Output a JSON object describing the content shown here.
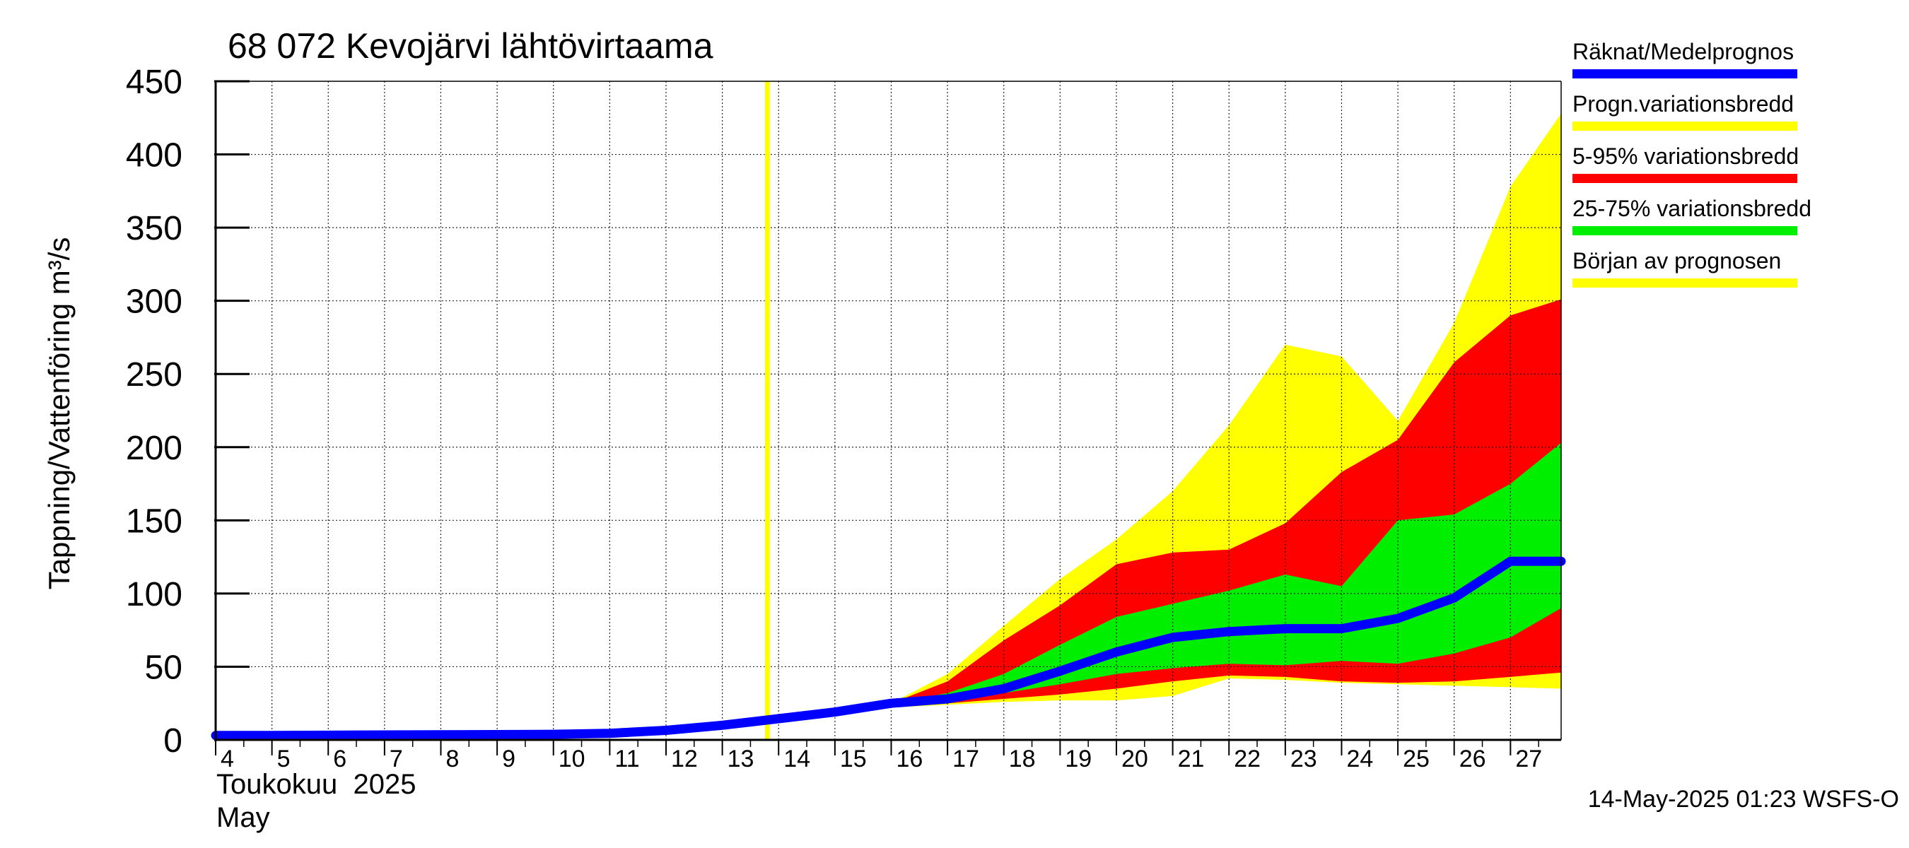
{
  "chart_data": {
    "type": "area",
    "title": "68 072 Kevojärvi lähtövirtaama",
    "ylabel": "Tappning/Vattenföring m³/s",
    "ylim": [
      0,
      450
    ],
    "yticks": [
      0,
      50,
      100,
      150,
      200,
      250,
      300,
      350,
      400,
      450
    ],
    "x_unit": "day of May 2025",
    "xlim": [
      4,
      27.9
    ],
    "xticks": [
      4,
      5,
      6,
      7,
      8,
      9,
      10,
      11,
      12,
      13,
      14,
      15,
      16,
      17,
      18,
      19,
      20,
      21,
      22,
      23,
      24,
      25,
      26,
      27
    ],
    "xlabel_month_fi": "Toukokuu  2025",
    "xlabel_month_sv": "May",
    "grid": true,
    "forecast_start": 13.8,
    "legend_position": "right",
    "legend": [
      {
        "label": "Räknat/Medelprognos",
        "color": "#0000ff"
      },
      {
        "label": "Progn.variationsbredd",
        "color": "#ffff00"
      },
      {
        "label": "5-95% variationsbredd",
        "color": "#ff0000"
      },
      {
        "label": "25-75% variationsbredd",
        "color": "#00ee00"
      },
      {
        "label": "Början av prognosen",
        "color": "#ffff00"
      }
    ],
    "band_x": [
      16,
      17,
      18,
      19,
      20,
      21,
      22,
      23,
      24,
      25,
      26,
      27,
      27.9
    ],
    "bands": {
      "progn_max": [
        25,
        45,
        78,
        110,
        137,
        170,
        215,
        270,
        262,
        218,
        285,
        378,
        428
      ],
      "p95": [
        25,
        40,
        68,
        92,
        120,
        128,
        130,
        148,
        183,
        205,
        258,
        290,
        301
      ],
      "p75": [
        25,
        32,
        45,
        65,
        84,
        93,
        102,
        113,
        105,
        150,
        154,
        175,
        203
      ],
      "p25": [
        23,
        28,
        32,
        38,
        45,
        49,
        52,
        51,
        54,
        52,
        59,
        70,
        90
      ],
      "p05": [
        22,
        25,
        28,
        31,
        35,
        40,
        44,
        43,
        40,
        39,
        40,
        43,
        46
      ],
      "progn_min": [
        22,
        24,
        26,
        27,
        27,
        30,
        42,
        41,
        39,
        38,
        37,
        36,
        35
      ]
    },
    "series": [
      {
        "name": "Räknat/Medelprognos",
        "x": [
          4,
          5,
          6,
          7,
          8,
          9,
          10,
          11,
          12,
          13,
          14,
          15,
          16,
          17,
          18,
          19,
          20,
          21,
          22,
          23,
          24,
          25,
          26,
          27,
          27.9
        ],
        "values": [
          3,
          3,
          3.2,
          3.4,
          3.5,
          3.6,
          3.8,
          4.5,
          6.5,
          10,
          14.5,
          19,
          25,
          28,
          35,
          47,
          60,
          70,
          74,
          76,
          76,
          83,
          97,
          122,
          122
        ]
      }
    ]
  },
  "footer": {
    "timestamp": "14-May-2025 01:23 WSFS-O"
  }
}
